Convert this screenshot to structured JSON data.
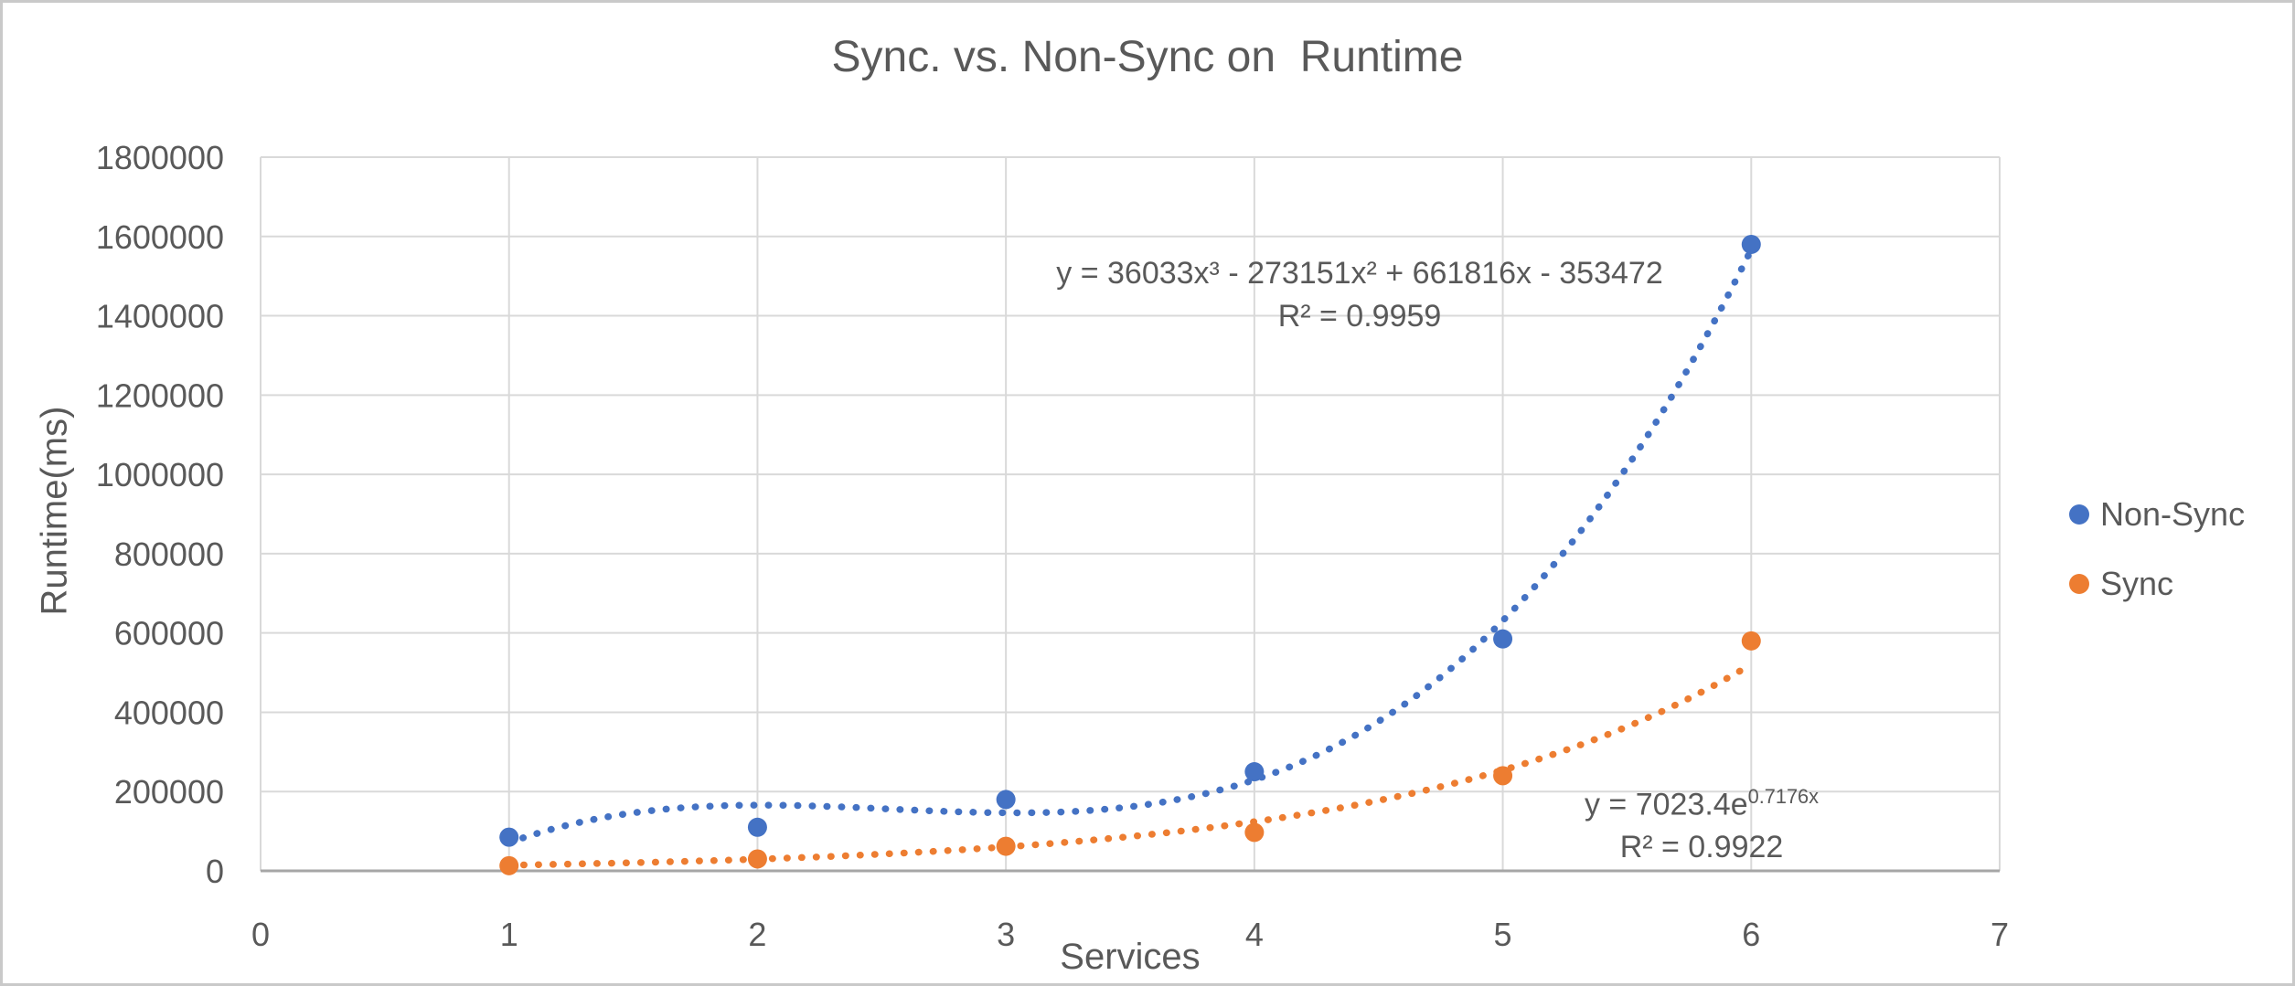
{
  "chart": {
    "title": "Sync. vs. Non-Sync on  Runtime",
    "x_axis": {
      "title": "Services",
      "ticks": [
        "0",
        "1",
        "2",
        "3",
        "4",
        "5",
        "6",
        "7"
      ]
    },
    "y_axis": {
      "title": "Runtime(ms)",
      "ticks": [
        "0",
        "200000",
        "400000",
        "600000",
        "800000",
        "1000000",
        "1200000",
        "1400000",
        "1600000",
        "1800000"
      ]
    },
    "legend": [
      {
        "label": "Non-Sync",
        "color": "#4472C4"
      },
      {
        "label": "Sync",
        "color": "#ED7D31"
      }
    ],
    "annotations": {
      "nonsync_equation": {
        "line1": "y = 36033x³ - 273151x² + 661816x - 353472",
        "line2": "R² = 0.9959"
      },
      "sync_equation": {
        "prefix": "y = 7023.4e",
        "exponent": "0.7176x",
        "line2": "R² = 0.9922"
      }
    },
    "colors": {
      "nonsync": "#4472C4",
      "sync": "#ED7D31",
      "gridline": "#d9d9d9",
      "axis_line": "#a6a6a6",
      "text": "#595959"
    }
  },
  "chart_data": {
    "type": "scatter",
    "title": "Sync. vs. Non-Sync on  Runtime",
    "xlabel": "Services",
    "ylabel": "Runtime(ms)",
    "x": [
      1,
      2,
      3,
      4,
      5,
      6
    ],
    "series": [
      {
        "name": "Non-Sync",
        "color": "#4472C4",
        "values": [
          85000,
          110000,
          180000,
          250000,
          585000,
          1580000
        ],
        "trendline": {
          "type": "polynomial",
          "order": 3,
          "coefficients": [
            36033,
            -273151,
            661816,
            -353472
          ],
          "equation": "y = 36033x³ - 273151x² + 661816x - 353472",
          "r2": 0.9959
        }
      },
      {
        "name": "Sync",
        "color": "#ED7D31",
        "values": [
          13000,
          30000,
          62000,
          97000,
          240000,
          580000
        ],
        "trendline": {
          "type": "exponential",
          "a": 7023.4,
          "b": 0.7176,
          "equation": "y = 7023.4e^(0.7176x)",
          "r2": 0.9922
        }
      }
    ],
    "xlim": [
      0,
      7
    ],
    "ylim": [
      0,
      1800000
    ],
    "x_tick_step": 1,
    "y_tick_step": 200000,
    "grid": true,
    "legend_position": "right",
    "marker": "circle",
    "trendline_style": "dotted"
  }
}
